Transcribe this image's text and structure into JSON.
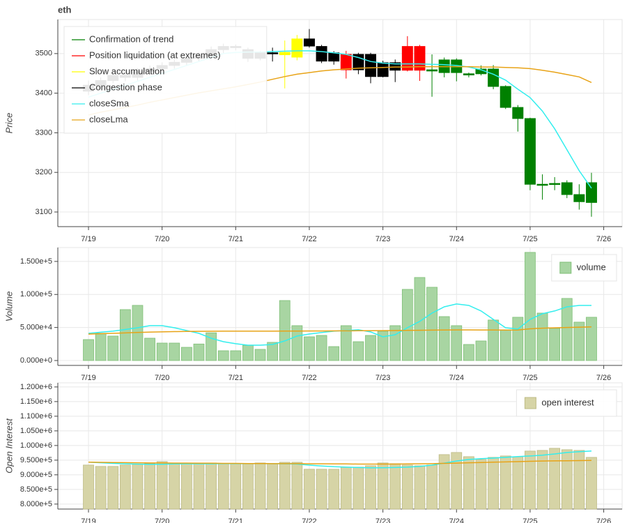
{
  "chart_data": [
    {
      "type": "candlestick",
      "title": "eth",
      "y_label": "Price",
      "x": [
        0,
        4,
        8,
        12,
        16,
        20,
        24,
        28,
        32,
        36,
        40,
        44,
        48,
        52,
        56,
        60,
        64,
        68,
        72,
        76,
        80,
        84,
        88,
        92,
        96,
        100,
        104,
        108,
        112,
        116,
        120,
        124,
        128,
        132,
        136,
        140,
        144,
        148,
        152,
        156,
        160,
        164
      ],
      "xlim": [
        -10,
        174
      ],
      "xticks": [
        {
          "value": 0,
          "label": "7/19"
        },
        {
          "value": 24,
          "label": "7/20"
        },
        {
          "value": 48,
          "label": "7/21"
        },
        {
          "value": 72,
          "label": "7/22"
        },
        {
          "value": 96,
          "label": "7/23"
        },
        {
          "value": 120,
          "label": "7/24"
        },
        {
          "value": 144,
          "label": "7/25"
        },
        {
          "value": 168,
          "label": "7/26"
        }
      ],
      "ylim": [
        3063,
        3586
      ],
      "yticks": [
        3100,
        3200,
        3300,
        3400,
        3500
      ],
      "open": [
        3405,
        3420,
        3432,
        3445,
        3440,
        3455,
        3462,
        3470,
        3478,
        3488,
        3495,
        3510,
        3518,
        3510,
        3502,
        3500,
        3497,
        3491,
        3537,
        3518,
        3502,
        3498,
        3498,
        3498,
        3477,
        3458,
        3458,
        3518,
        3459,
        3484,
        3484,
        3449,
        3461,
        3461,
        3417,
        3364,
        3336,
        3170,
        3172,
        3174,
        3144,
        3124
      ],
      "high": [
        3432,
        3440,
        3452,
        3458,
        3463,
        3470,
        3478,
        3486,
        3495,
        3503,
        3518,
        3525,
        3523,
        3515,
        3506,
        3515,
        3533,
        3547,
        3562,
        3522,
        3506,
        3507,
        3502,
        3502,
        3482,
        3485,
        3544,
        3522,
        3498,
        3490,
        3488,
        3452,
        3470,
        3471,
        3420,
        3370,
        3338,
        3195,
        3188,
        3180,
        3170,
        3199
      ],
      "low": [
        3395,
        3410,
        3425,
        3430,
        3432,
        3448,
        3455,
        3462,
        3470,
        3480,
        3488,
        3500,
        3508,
        3479,
        3483,
        3480,
        3412,
        3483,
        3515,
        3476,
        3472,
        3437,
        3448,
        3425,
        3440,
        3428,
        3455,
        3431,
        3391,
        3440,
        3430,
        3440,
        3445,
        3410,
        3360,
        3303,
        3155,
        3131,
        3155,
        3135,
        3106,
        3088
      ],
      "close": [
        3420,
        3432,
        3445,
        3440,
        3455,
        3462,
        3470,
        3478,
        3488,
        3495,
        3510,
        3518,
        3515,
        3488,
        3488,
        3502,
        3503,
        3537,
        3519,
        3481,
        3481,
        3459,
        3459,
        3442,
        3442,
        3477,
        3518,
        3458,
        3456,
        3452,
        3452,
        3446,
        3449,
        3417,
        3364,
        3336,
        3170,
        3168,
        3170,
        3144,
        3126,
        3174
      ],
      "candle_colors": [
        "#000000",
        "#000000",
        "#000000",
        "#000000",
        "#000000",
        "#000000",
        "#000000",
        "#000000",
        "#000000",
        "#000000",
        "#000000",
        "#000000",
        "#000000",
        "#000000",
        "#000000",
        "#000000",
        "#ffff00",
        "#ffff00",
        "#000000",
        "#000000",
        "#000000",
        "#ff0000",
        "#000000",
        "#000000",
        "#000000",
        "#000000",
        "#ff0000",
        "#ff0000",
        "#008000",
        "#008000",
        "#008000",
        "#008000",
        "#008000",
        "#008000",
        "#008000",
        "#008000",
        "#008000",
        "#008000",
        "#008000",
        "#008000",
        "#008000",
        "#008000"
      ],
      "legend": [
        {
          "name": "Confirmation of trend",
          "color": "#008000"
        },
        {
          "name": "Position liquidation (at extremes)",
          "color": "#ff0000"
        },
        {
          "name": "Slow accumulation",
          "color": "#ffff00"
        },
        {
          "name": "Congestion phase",
          "color": "#000000"
        }
      ],
      "series": [
        {
          "name": "closeSma",
          "color": "#33eeee",
          "values": [
            3390,
            3400,
            3410,
            3420,
            3430,
            3440,
            3450,
            3460,
            3470,
            3480,
            3490,
            3500,
            3503,
            3504,
            3504,
            3505,
            3506,
            3507,
            3507,
            3505,
            3502,
            3498,
            3490,
            3480,
            3476,
            3474,
            3474,
            3474,
            3473,
            3472,
            3470,
            3466,
            3459,
            3448,
            3433,
            3410,
            3389,
            3355,
            3310,
            3257,
            3204,
            3160
          ]
        },
        {
          "name": "closeLma",
          "color": "#e8a317",
          "values": [
            3345,
            3352,
            3358,
            3364,
            3370,
            3377,
            3383,
            3389,
            3395,
            3401,
            3406,
            3411,
            3416,
            3422,
            3428,
            3435,
            3442,
            3448,
            3452,
            3456,
            3459,
            3461,
            3463,
            3464,
            3465,
            3466,
            3466,
            3467,
            3467,
            3467,
            3467,
            3467,
            3466,
            3466,
            3465,
            3464,
            3462,
            3458,
            3453,
            3447,
            3441,
            3427
          ]
        }
      ],
      "grid": true,
      "legend_position": "top-left"
    },
    {
      "type": "bar",
      "y_label": "Volume",
      "x": [
        0,
        4,
        8,
        12,
        16,
        20,
        24,
        28,
        32,
        36,
        40,
        44,
        48,
        52,
        56,
        60,
        64,
        68,
        72,
        76,
        80,
        84,
        88,
        92,
        96,
        100,
        104,
        108,
        112,
        116,
        120,
        124,
        128,
        132,
        136,
        140,
        144,
        148,
        152,
        156,
        160,
        164
      ],
      "xlim": [
        -10,
        174
      ],
      "xticks": [
        {
          "value": 0,
          "label": "7/19"
        },
        {
          "value": 24,
          "label": "7/20"
        },
        {
          "value": 48,
          "label": "7/21"
        },
        {
          "value": 72,
          "label": "7/22"
        },
        {
          "value": 96,
          "label": "7/23"
        },
        {
          "value": 120,
          "label": "7/24"
        },
        {
          "value": 144,
          "label": "7/25"
        },
        {
          "value": 168,
          "label": "7/26"
        }
      ],
      "ylim": [
        -7400,
        171000
      ],
      "yticks": [
        {
          "value": 0,
          "label": "0.000e+0"
        },
        {
          "value": 50000,
          "label": "5.000e+4"
        },
        {
          "value": 100000,
          "label": "1.000e+5"
        },
        {
          "value": 150000,
          "label": "1.500e+5"
        }
      ],
      "name": "volume",
      "color": "#a8d5a2",
      "edge_color": "#7fbf77",
      "values": [
        31700,
        41200,
        37000,
        77100,
        83500,
        33800,
        26400,
        26400,
        20000,
        25000,
        42000,
        14800,
        14800,
        23000,
        16900,
        27500,
        90800,
        52800,
        35900,
        38000,
        21100,
        52800,
        28500,
        38000,
        44400,
        52800,
        107700,
        125700,
        110900,
        66500,
        52800,
        24300,
        29600,
        61300,
        46500,
        65500,
        163700,
        71800,
        48600,
        94000,
        58100,
        65500
      ],
      "series": [
        {
          "color": "#33eeee",
          "values": [
            41200,
            42800,
            44400,
            47000,
            49600,
            52800,
            52800,
            49600,
            45400,
            41200,
            33800,
            28500,
            25400,
            23200,
            23200,
            24300,
            29600,
            37000,
            40100,
            42300,
            44400,
            45400,
            46500,
            43300,
            35900,
            39100,
            49600,
            59200,
            71800,
            81300,
            85600,
            83400,
            75000,
            62300,
            49600,
            47500,
            62300,
            70800,
            75000,
            81300,
            83400,
            83400
          ]
        },
        {
          "color": "#e8a317",
          "values": [
            40000,
            40600,
            41200,
            41800,
            42400,
            43000,
            43400,
            43800,
            44000,
            44200,
            44300,
            44400,
            44400,
            44400,
            44400,
            44400,
            44500,
            44600,
            44700,
            44800,
            44900,
            45000,
            45100,
            45200,
            45300,
            45400,
            45600,
            45800,
            46000,
            46200,
            46300,
            46300,
            46200,
            46100,
            46000,
            46200,
            48000,
            49000,
            49500,
            50000,
            50500,
            51000
          ]
        }
      ],
      "grid": true,
      "legend_position": "top-right"
    },
    {
      "type": "bar",
      "y_label": "Open Interest",
      "x": [
        0,
        4,
        8,
        12,
        16,
        20,
        24,
        28,
        32,
        36,
        40,
        44,
        48,
        52,
        56,
        60,
        64,
        68,
        72,
        76,
        80,
        84,
        88,
        92,
        96,
        100,
        104,
        108,
        112,
        116,
        120,
        124,
        128,
        132,
        136,
        140,
        144,
        148,
        152,
        156,
        160,
        164
      ],
      "xlim": [
        -10,
        174
      ],
      "xticks": [
        {
          "value": 0,
          "label": "7/19"
        },
        {
          "value": 24,
          "label": "7/20"
        },
        {
          "value": 48,
          "label": "7/21"
        },
        {
          "value": 72,
          "label": "7/22"
        },
        {
          "value": 96,
          "label": "7/23"
        },
        {
          "value": 120,
          "label": "7/24"
        },
        {
          "value": 144,
          "label": "7/25"
        },
        {
          "value": 168,
          "label": "7/26"
        }
      ],
      "ylim": [
        783000,
        1214000
      ],
      "yticks": [
        {
          "value": 800000,
          "label": "8.000e+5"
        },
        {
          "value": 850000,
          "label": "8.500e+5"
        },
        {
          "value": 900000,
          "label": "9.000e+5"
        },
        {
          "value": 950000,
          "label": "9.500e+5"
        },
        {
          "value": 1000000,
          "label": "1.000e+6"
        },
        {
          "value": 1050000,
          "label": "1.050e+6"
        },
        {
          "value": 1100000,
          "label": "1.100e+6"
        },
        {
          "value": 1150000,
          "label": "1.150e+6"
        },
        {
          "value": 1200000,
          "label": "1.200e+6"
        }
      ],
      "name": "open interest",
      "color": "#d6d4a6",
      "edge_color": "#bdbb86",
      "values": [
        933300,
        928600,
        928600,
        933300,
        935700,
        938100,
        945200,
        940500,
        940500,
        940500,
        940500,
        938100,
        938100,
        938100,
        940500,
        938100,
        942900,
        942900,
        919000,
        919000,
        919000,
        926200,
        926200,
        931000,
        940500,
        938100,
        933300,
        931000,
        933300,
        969000,
        976200,
        961900,
        952400,
        959500,
        964300,
        961900,
        981000,
        983300,
        990500,
        985700,
        983300,
        959500
      ],
      "series": [
        {
          "color": "#33eeee",
          "values": [
            942900,
            941000,
            939000,
            937500,
            936500,
            935700,
            936000,
            937000,
            937500,
            937500,
            937500,
            938000,
            938000,
            938000,
            938000,
            938000,
            937500,
            936500,
            933000,
            930000,
            927500,
            926200,
            925000,
            923800,
            924000,
            925000,
            926200,
            928600,
            933000,
            940000,
            947000,
            952400,
            955000,
            957100,
            959500,
            962000,
            964300,
            967000,
            971000,
            976200,
            979000,
            981000
          ]
        },
        {
          "color": "#e8a317",
          "values": [
            942900,
            942500,
            942000,
            941500,
            941000,
            940500,
            940500,
            940000,
            940000,
            939500,
            939500,
            939000,
            939000,
            938500,
            938500,
            938000,
            938000,
            938000,
            937500,
            937500,
            937000,
            937000,
            936500,
            936500,
            936500,
            936500,
            937000,
            937500,
            938000,
            939000,
            940000,
            941000,
            942000,
            943000,
            944000,
            945000,
            946000,
            947000,
            947500,
            948000,
            948500,
            949000
          ]
        }
      ],
      "grid": true,
      "legend_position": "top-right"
    }
  ]
}
